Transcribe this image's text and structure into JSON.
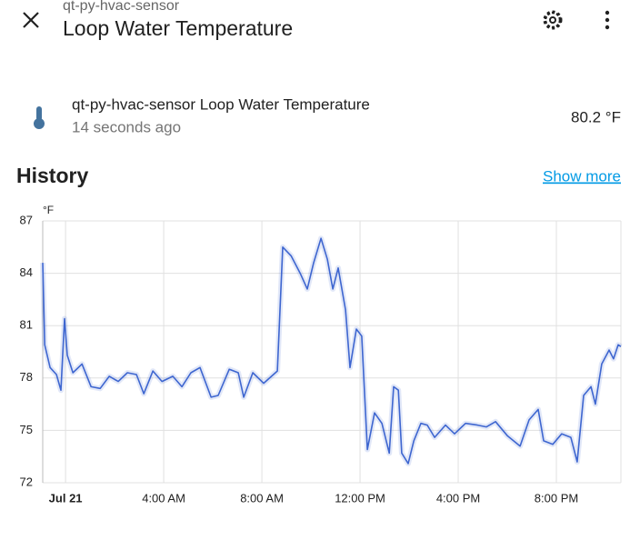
{
  "header": {
    "subtitle": "qt-py-hvac-sensor",
    "title": "Loop Water Temperature"
  },
  "entity": {
    "name": "qt-py-hvac-sensor Loop Water Temperature",
    "last_changed": "14 seconds ago",
    "state": "80.2 °F"
  },
  "history": {
    "title": "History",
    "link": "Show more"
  },
  "chart_data": {
    "type": "line",
    "y_label": "°F",
    "color": "#3e66d0",
    "grid": true,
    "x": [
      -0.93,
      -0.85,
      -0.63,
      -0.37,
      -0.19,
      -0.04,
      0.07,
      0.3,
      0.67,
      1.04,
      1.41,
      1.78,
      2.15,
      2.52,
      2.89,
      3.19,
      3.56,
      3.93,
      4.37,
      4.74,
      5.11,
      5.48,
      5.93,
      6.22,
      6.67,
      7.04,
      7.26,
      7.63,
      8.07,
      8.63,
      8.85,
      9.19,
      9.56,
      9.85,
      10.11,
      10.41,
      10.67,
      10.89,
      11.11,
      11.41,
      11.59,
      11.85,
      12.07,
      12.3,
      12.59,
      12.89,
      13.19,
      13.37,
      13.56,
      13.7,
      13.96,
      14.19,
      14.48,
      14.74,
      15.04,
      15.48,
      15.85,
      16.3,
      16.78,
      17.15,
      17.52,
      18.0,
      18.52,
      18.89,
      19.26,
      19.48,
      19.85,
      20.22,
      20.59,
      20.85,
      21.11,
      21.41,
      21.59,
      21.85,
      22.15,
      22.33,
      22.52,
      22.63
    ],
    "values": [
      84.6,
      79.9,
      78.6,
      78.2,
      77.3,
      81.4,
      79.3,
      78.3,
      78.8,
      77.5,
      77.4,
      78.1,
      77.8,
      78.3,
      78.2,
      77.1,
      78.4,
      77.8,
      78.1,
      77.5,
      78.3,
      78.6,
      76.9,
      77.0,
      78.5,
      78.3,
      76.9,
      78.3,
      77.7,
      78.4,
      85.5,
      85.0,
      84.0,
      83.1,
      84.6,
      86.0,
      84.8,
      83.1,
      84.3,
      81.9,
      78.6,
      80.8,
      80.4,
      73.9,
      76.0,
      75.4,
      73.7,
      77.5,
      77.3,
      73.7,
      73.1,
      74.4,
      75.4,
      75.3,
      74.6,
      75.3,
      74.8,
      75.4,
      75.3,
      75.2,
      75.5,
      74.7,
      74.1,
      75.6,
      76.2,
      74.4,
      74.2,
      74.8,
      74.6,
      73.2,
      77.0,
      77.5,
      76.5,
      78.8,
      79.6,
      79.1,
      79.9,
      79.8
    ],
    "xlim": [
      -0.93,
      22.63
    ],
    "xticks": [
      {
        "value": 0,
        "label": "Jul 21"
      },
      {
        "value": 4,
        "label": "4:00 AM"
      },
      {
        "value": 8,
        "label": "8:00 AM"
      },
      {
        "value": 12,
        "label": "12:00 PM"
      },
      {
        "value": 16,
        "label": "4:00 PM"
      },
      {
        "value": 20,
        "label": "8:00 PM"
      }
    ],
    "ylim": [
      72,
      87
    ],
    "yticks": [
      72,
      75,
      78,
      81,
      84,
      87
    ]
  }
}
